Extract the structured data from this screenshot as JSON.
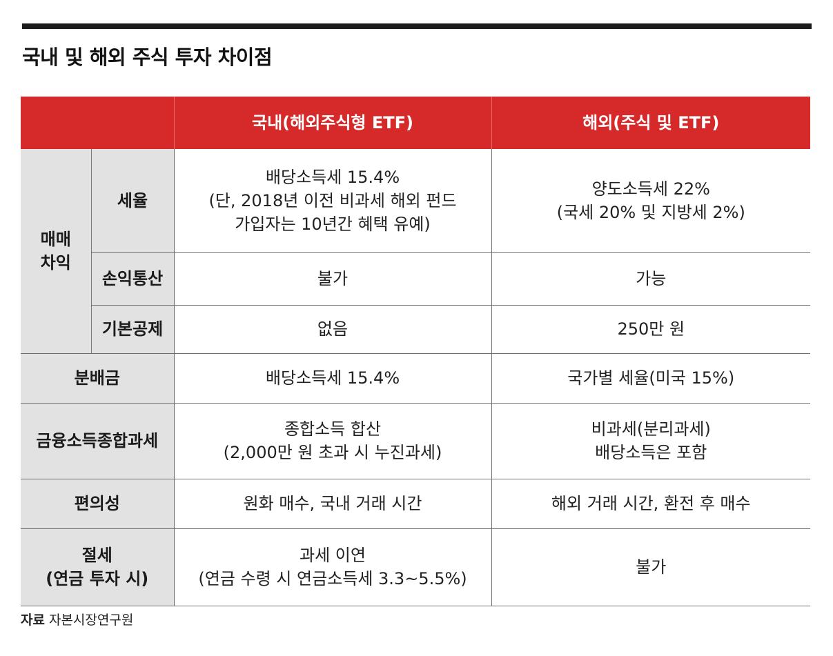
{
  "title": "국내 및 해외 주식 투자 차이점",
  "header": {
    "empty": "",
    "domestic": "국내(해외주식형 ETF)",
    "overseas": "해외(주식 및 ETF)"
  },
  "rows": {
    "trade_group": "매매 차익",
    "trade_group_lines": [
      "매매",
      "차익"
    ],
    "tax_rate": {
      "label": "세율",
      "domestic": [
        "배당소득세 15.4%",
        "(단, 2018년 이전 비과세 해외 펀드",
        "가입자는 10년간 혜택 유예)"
      ],
      "overseas": [
        "양도소득세 22%",
        "(국세 20% 및 지방세 2%)"
      ]
    },
    "loss_offset": {
      "label": "손익통산",
      "domestic": "불가",
      "overseas": "가능"
    },
    "basic_deduction": {
      "label": "기본공제",
      "domestic": "없음",
      "overseas": "250만 원"
    },
    "distribution": {
      "label": "분배금",
      "domestic": "배당소득세 15.4%",
      "overseas": "국가별 세율(미국 15%)"
    },
    "comprehensive_tax": {
      "label": "금융소득종합과세",
      "domestic": [
        "종합소득 합산",
        "(2,000만 원 초과 시 누진과세)"
      ],
      "overseas": [
        "비과세(분리과세)",
        "배당소득은 포함"
      ]
    },
    "convenience": {
      "label": "편의성",
      "domestic": "원화 매수, 국내 거래 시간",
      "overseas": "해외 거래 시간, 환전 후 매수"
    },
    "tax_saving": {
      "label_lines": [
        "절세",
        "(연금 투자 시)"
      ],
      "domestic": [
        "과세 이연",
        "(연금 수령 시 연금소득세 3.3~5.5%)"
      ],
      "overseas": "불가"
    }
  },
  "source": {
    "label": "자료",
    "text": "자본시장연구원"
  },
  "colors": {
    "header_red": "#d62a2a",
    "label_gray": "#e2e2e2",
    "rule": "#1c1c1c"
  }
}
